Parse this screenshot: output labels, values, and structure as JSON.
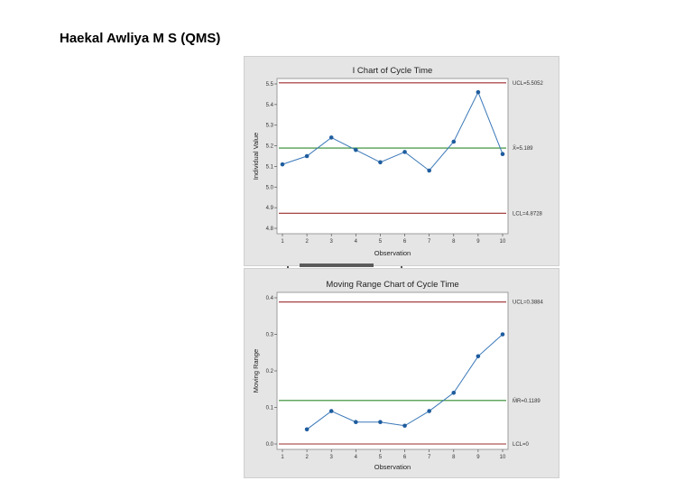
{
  "page": {
    "title": "Haekal Awliya M S (QMS)"
  },
  "colors": {
    "data": "#3a78b8",
    "marker": "#1f5d9e",
    "center": "#2e8b2e",
    "limit": "#9b2b2b",
    "panel_bg": "#e5e5e5",
    "plot_bg": "#ffffff"
  },
  "chart_data": [
    {
      "type": "line",
      "title": "I Chart of Cycle Time",
      "xlabel": "Observation",
      "ylabel": "Individual Value",
      "x": [
        1,
        2,
        3,
        4,
        5,
        6,
        7,
        8,
        9,
        10
      ],
      "y": [
        5.11,
        5.15,
        5.24,
        5.18,
        5.12,
        5.17,
        5.08,
        5.22,
        5.46,
        5.16
      ],
      "xlim": [
        1,
        10
      ],
      "ylim": [
        4.8,
        5.5
      ],
      "yticks": [
        "4.8",
        "4.9",
        "5.0",
        "5.1",
        "5.2",
        "5.3",
        "5.4",
        "5.5"
      ],
      "xticks": [
        "1",
        "2",
        "3",
        "4",
        "5",
        "6",
        "7",
        "8",
        "9",
        "10"
      ],
      "lines": [
        {
          "label": "UCL=5.5052",
          "value": 5.5052,
          "kind": "limit"
        },
        {
          "label": "X̄=5.189",
          "value": 5.189,
          "kind": "center"
        },
        {
          "label": "LCL=4.8728",
          "value": 4.8728,
          "kind": "limit"
        }
      ]
    },
    {
      "type": "line",
      "title": "Moving Range Chart of Cycle Time",
      "xlabel": "Observation",
      "ylabel": "Moving Range",
      "x": [
        2,
        3,
        4,
        5,
        6,
        7,
        8,
        9,
        10
      ],
      "y": [
        0.04,
        0.09,
        0.06,
        0.06,
        0.05,
        0.09,
        0.14,
        0.24,
        0.3
      ],
      "xlim": [
        1,
        10
      ],
      "ylim": [
        0.0,
        0.4
      ],
      "yticks": [
        "0.0",
        "0.1",
        "0.2",
        "0.3",
        "0.4"
      ],
      "xticks": [
        "1",
        "2",
        "3",
        "4",
        "5",
        "6",
        "7",
        "8",
        "9",
        "10"
      ],
      "lines": [
        {
          "label": "UCL=0.3884",
          "value": 0.3884,
          "kind": "limit"
        },
        {
          "label": "M̄R=0.1189",
          "value": 0.1189,
          "kind": "center"
        },
        {
          "label": "LCL=0",
          "value": 0,
          "kind": "limit"
        }
      ]
    }
  ]
}
